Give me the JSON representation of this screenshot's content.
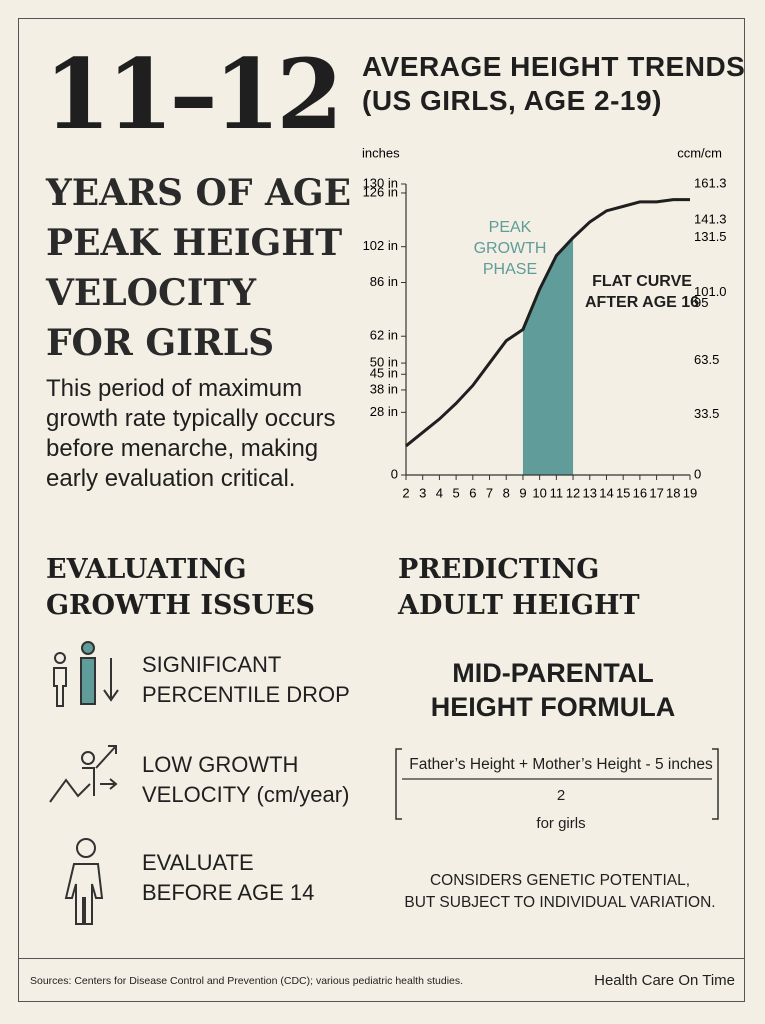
{
  "header": {
    "number": "11–12",
    "lines": [
      "YEARS OF AGE",
      "PEAK HEIGHT",
      "VELOCITY",
      "FOR GIRLS"
    ],
    "body": "This period of maximum growth rate typically occurs before menarche, making early evaluation critical."
  },
  "chart_data": {
    "type": "line",
    "title_lines": [
      "AVERAGE HEIGHT TRENDS",
      "(US GIRLS, AGE 2-19)"
    ],
    "y_label": "inches",
    "y2_label": "ccm/cm",
    "x": [
      2,
      3,
      4,
      5,
      6,
      7,
      8,
      9,
      10,
      11,
      12,
      13,
      14,
      15,
      16,
      17,
      18,
      19
    ],
    "series": [
      {
        "color": "#1f1f1f",
        "values": [
          13,
          19,
          25,
          32,
          40,
          50,
          60,
          65,
          83,
          98,
          106,
          113,
          118,
          120,
          122,
          122,
          123,
          123
        ]
      }
    ],
    "xlim": [
      2,
      19
    ],
    "xticks": [
      2,
      3,
      4,
      5,
      6,
      7,
      8,
      9,
      10,
      11,
      12,
      13,
      14,
      15,
      16,
      17,
      18,
      19
    ],
    "ylim": [
      0,
      130
    ],
    "yticks": [
      0,
      {
        "value": 28,
        "label": "28 in"
      },
      {
        "value": 38,
        "label": "38 in"
      },
      {
        "value": 45,
        "label": "45 in"
      },
      {
        "value": 62,
        "label": "62 in"
      },
      {
        "value": 50,
        "label": "50 in"
      },
      {
        "value": 86,
        "label": "86 in"
      },
      {
        "value": 102,
        "label": "102 in"
      },
      {
        "value": 126,
        "label": "126 in"
      },
      {
        "value": 130,
        "label": "130 in"
      }
    ],
    "y2lim": [
      0,
      161.3
    ],
    "y2ticks": [
      0,
      33.5,
      63.5,
      95,
      {
        "value": 101,
        "label": "101.0"
      },
      131.5,
      141.3,
      161.3
    ],
    "highlight": [
      9,
      12
    ],
    "highlight_color": "#5f9c9a",
    "annotations": [
      {
        "lines": [
          "PEAK",
          "GROWTH",
          "PHASE"
        ],
        "color": "#5f9c9a"
      },
      {
        "lines": [
          "FLAT CURVE",
          "AFTER AGE 16"
        ],
        "color": "#1f1f1f"
      }
    ]
  },
  "evaluating": {
    "title_lines": [
      "EVALUATING",
      "GROWTH ISSUES"
    ],
    "items": [
      [
        "SIGNIFICANT",
        "PERCENTILE DROP"
      ],
      [
        "LOW GROWTH",
        "VELOCITY (cm/year)"
      ],
      [
        "EVALUATE",
        "BEFORE AGE 14"
      ]
    ]
  },
  "predicting": {
    "title_lines": [
      "PREDICTING",
      "ADULT HEIGHT"
    ],
    "formula_title_lines": [
      "MID-PARENTAL",
      "HEIGHT FORMULA"
    ],
    "numerator": "Father’s Height + Mother’s Height - 5 inches",
    "denominator": "2",
    "note": "for girls",
    "caption_lines": [
      "CONSIDERS GENETIC POTENTIAL,",
      "BUT SUBJECT TO INDIVIDUAL VARIATION."
    ]
  },
  "footer": {
    "sources": "Sources: Centers for Disease Control and Prevention (CDC); various pediatric health studies.",
    "brand": "Health Care On Time"
  }
}
